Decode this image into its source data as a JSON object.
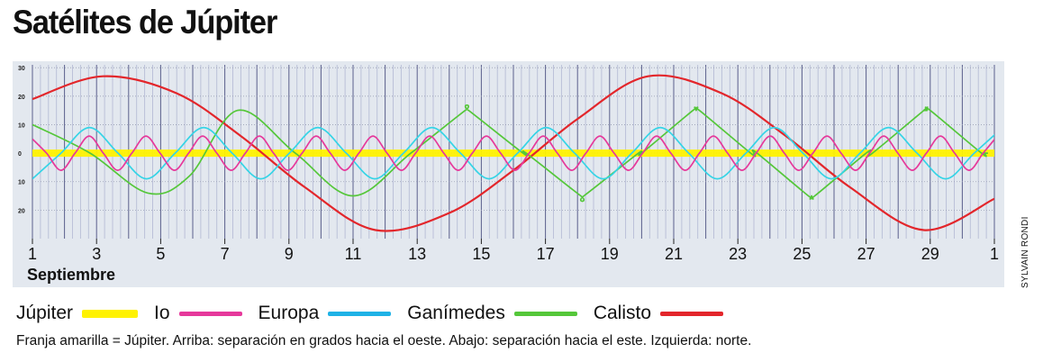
{
  "title": "Satélites de Júpiter",
  "credit": "SYLVAIN RONDI",
  "note": "Franja amarilla = Júpiter. Arriba: separación en grados hacia el oeste. Abajo: separación hacia el este. Izquierda: norte.",
  "chart_data": {
    "type": "line",
    "title": "Satélites de Júpiter",
    "xlabel": "Septiembre",
    "ylabel": "",
    "x_tick_labels": [
      "1",
      "3",
      "5",
      "7",
      "9",
      "11",
      "13",
      "15",
      "17",
      "19",
      "21",
      "23",
      "25",
      "27",
      "29",
      "1"
    ],
    "x_tick_days": [
      1,
      3,
      5,
      7,
      9,
      11,
      13,
      15,
      17,
      19,
      21,
      23,
      25,
      27,
      29,
      31
    ],
    "xlim": [
      1,
      31
    ],
    "y_tick_labels": [
      "30",
      "20",
      "10",
      "0",
      "10",
      "20"
    ],
    "y_tick_values": [
      30,
      20,
      10,
      0,
      -10,
      -20
    ],
    "ylim": [
      -30,
      31
    ],
    "grid": true,
    "legend_position": "bottom",
    "series": [
      {
        "name": "Júpiter",
        "color": "#fff200",
        "style": "band",
        "x": [
          1,
          31
        ],
        "y": [
          0,
          0
        ]
      },
      {
        "name": "Io",
        "color": "#e6399b",
        "x": [
          1,
          1.44,
          1.89,
          2.33,
          2.77,
          3.21,
          3.66,
          4.1,
          4.54
        ],
        "y": [
          5,
          0,
          -6,
          0,
          6,
          0,
          -6,
          0,
          6
        ]
      },
      {
        "name": "Europa",
        "color": "#35d4e6",
        "x": [
          1,
          1.89,
          2.78,
          3.67,
          4.56,
          5.45,
          6.34,
          7.23,
          8.12
        ],
        "y": [
          -9,
          0,
          9,
          0,
          -9,
          0,
          9,
          0,
          -9
        ]
      },
      {
        "name": "Ganímedes",
        "color": "#55c73a",
        "x": [
          1,
          2.8,
          4.6,
          5.9,
          7.4,
          9.2,
          11,
          12.8,
          14.5,
          16.3,
          18.1,
          19.9,
          21.6,
          23.4,
          25.2,
          27.0,
          28.8,
          30.6
        ],
        "y": [
          10,
          0,
          -14,
          -8,
          15,
          0,
          -15,
          0,
          15,
          0,
          -15,
          0,
          15,
          0,
          -15,
          0,
          15,
          0
        ]
      },
      {
        "name": "Calisto",
        "color": "#e3262b",
        "x": [
          1,
          3.2,
          5.5,
          7.5,
          9.5,
          11.7,
          14,
          16,
          18,
          20.2,
          22.5,
          24.5,
          26.5,
          28.8,
          31
        ],
        "y": [
          19,
          27,
          21,
          6,
          -12,
          -27,
          -21,
          -6,
          12,
          27,
          21,
          6,
          -12,
          -27,
          -16
        ]
      }
    ]
  },
  "legend": {
    "items": [
      {
        "label": "Júpiter",
        "color": "#fff200"
      },
      {
        "label": "Io",
        "color": "#e6399b"
      },
      {
        "label": "Europa",
        "color": "#1fb2e6"
      },
      {
        "label": "Ganímedes",
        "color": "#55c73a"
      },
      {
        "label": "Calisto",
        "color": "#e3262b"
      }
    ]
  }
}
